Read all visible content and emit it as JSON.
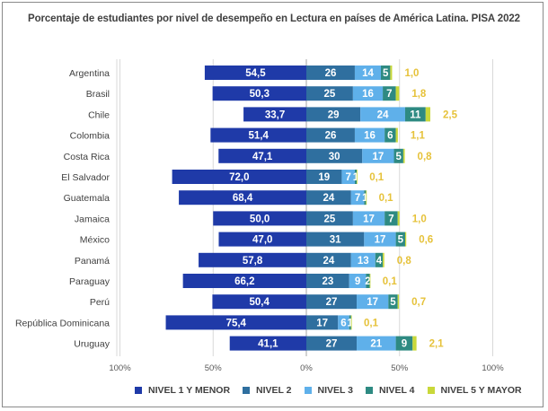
{
  "chart_data": {
    "type": "bar",
    "orientation": "horizontal",
    "stacking": "diverging",
    "title": "Porcentaje de estudiantes por nivel de desempeño en Lectura en países de América Latina. PISA 2022",
    "xlabel": "",
    "ylabel": "",
    "xlim": [
      -100,
      100
    ],
    "x_ticks": [
      {
        "value": -100,
        "label": "100%"
      },
      {
        "value": -50,
        "label": "50%"
      },
      {
        "value": 0,
        "label": "0%"
      },
      {
        "value": 50,
        "label": "50%"
      },
      {
        "value": 100,
        "label": "100%"
      }
    ],
    "grid": true,
    "legend_position": "bottom",
    "categories": [
      "Argentina",
      "Brasil",
      "Chile",
      "Colombia",
      "Costa Rica",
      "El Salvador",
      "Guatemala",
      "Jamaica",
      "México",
      "Panamá",
      "Paraguay",
      "Perú",
      "República Dominicana",
      "Uruguay"
    ],
    "series": [
      {
        "name": "NIVEL 1 Y MENOR",
        "color": "#1f3aa8",
        "direction": "left",
        "values": [
          54.5,
          50.3,
          33.7,
          51.4,
          47.1,
          72.0,
          68.4,
          50.0,
          47.0,
          57.8,
          66.2,
          50.4,
          75.4,
          41.1
        ],
        "labels": [
          "54,5",
          "50,3",
          "33,7",
          "51,4",
          "47,1",
          "72,0",
          "68,4",
          "50,0",
          "47,0",
          "57,8",
          "66,2",
          "50,4",
          "75,4",
          "41,1"
        ]
      },
      {
        "name": "NIVEL 2",
        "color": "#2f6f9f",
        "direction": "right",
        "values": [
          26,
          25,
          29,
          26,
          30,
          19,
          24,
          25,
          31,
          24,
          23,
          27,
          17,
          27
        ],
        "labels": [
          "26",
          "25",
          "29",
          "26",
          "30",
          "19",
          "24",
          "25",
          "31",
          "24",
          "23",
          "27",
          "17",
          "27"
        ]
      },
      {
        "name": "NIVEL 3",
        "color": "#5fb0ea",
        "direction": "right",
        "values": [
          14,
          16,
          24,
          16,
          17,
          7,
          7,
          17,
          17,
          13,
          9,
          17,
          6,
          21
        ],
        "labels": [
          "14",
          "16",
          "24",
          "16",
          "17",
          "7",
          "7",
          "17",
          "17",
          "13",
          "9",
          "17",
          "6",
          "21"
        ]
      },
      {
        "name": "NIVEL 4",
        "color": "#2e8a82",
        "direction": "right",
        "values": [
          5,
          7,
          11,
          6,
          5,
          1,
          1,
          7,
          5,
          4,
          2,
          5,
          1,
          9
        ],
        "labels": [
          "5",
          "7",
          "11",
          "6",
          "5",
          "1",
          "1",
          "7",
          "5",
          "4",
          "2",
          "5",
          "1",
          "9"
        ]
      },
      {
        "name": "NIVEL 5 Y MAYOR",
        "color": "#c9d83a",
        "direction": "right",
        "values": [
          1.0,
          1.8,
          2.5,
          1.1,
          0.8,
          0.1,
          0.1,
          1.0,
          0.6,
          0.8,
          0.1,
          0.7,
          0.1,
          2.1
        ],
        "labels": [
          "1,0",
          "1,8",
          "2,5",
          "1,1",
          "0,8",
          "0,1",
          "0,1",
          "1,0",
          "0,6",
          "0,8",
          "0,1",
          "0,7",
          "0,1",
          "2,1"
        ],
        "label_color": "#e6c23a"
      }
    ]
  }
}
